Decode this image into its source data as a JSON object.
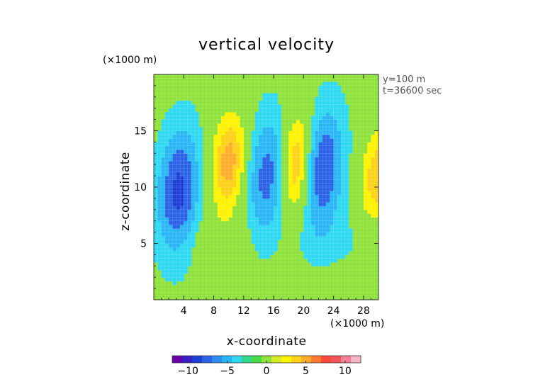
{
  "chart_data": {
    "type": "heatmap",
    "title": "vertical velocity",
    "xlabel": "x-coordinate",
    "ylabel": "z-coordinate",
    "x_unit": "(×1000 m)",
    "y_unit": "(×1000 m)",
    "annotations": [
      "y=100 m",
      "t=36600 sec"
    ],
    "xlim": [
      0,
      30
    ],
    "ylim": [
      0,
      20
    ],
    "x_ticks": [
      4,
      8,
      12,
      16,
      20,
      24,
      28
    ],
    "y_ticks": [
      5,
      10,
      15
    ],
    "colorbar": {
      "range": [
        -12,
        12
      ],
      "tick_values": [
        -10,
        -5,
        0,
        5,
        10
      ],
      "tick_labels": [
        "−10",
        "−5",
        "0",
        "5",
        "10"
      ],
      "colors": [
        "#6a00a8",
        "#3a1fc7",
        "#1e3fd6",
        "#2c63e6",
        "#2f8cf0",
        "#2ab6f5",
        "#2fd9f2",
        "#33d98a",
        "#4ad94a",
        "#8ee23a",
        "#d7ea2a",
        "#fff200",
        "#ffd21a",
        "#ffac2a",
        "#ff7a2e",
        "#ff4a3a",
        "#f2555a",
        "#f57f96",
        "#f8b6c2"
      ]
    },
    "background_value": 0,
    "features": [
      {
        "kind": "downdraft",
        "x": 3.3,
        "z": 9.6,
        "peak": -9
      },
      {
        "kind": "updraft",
        "x": 10.0,
        "z": 12.2,
        "peak": 5.5
      },
      {
        "kind": "downdraft",
        "x": 15.2,
        "z": 11.0,
        "peak": -6.5
      },
      {
        "kind": "updraft",
        "x": 19.0,
        "z": 12.0,
        "peak": 5.5
      },
      {
        "kind": "downdraft",
        "x": 22.6,
        "z": 11.6,
        "peak": -8
      },
      {
        "kind": "updraft",
        "x": 29.8,
        "z": 11.0,
        "peak": 4.5
      }
    ]
  }
}
